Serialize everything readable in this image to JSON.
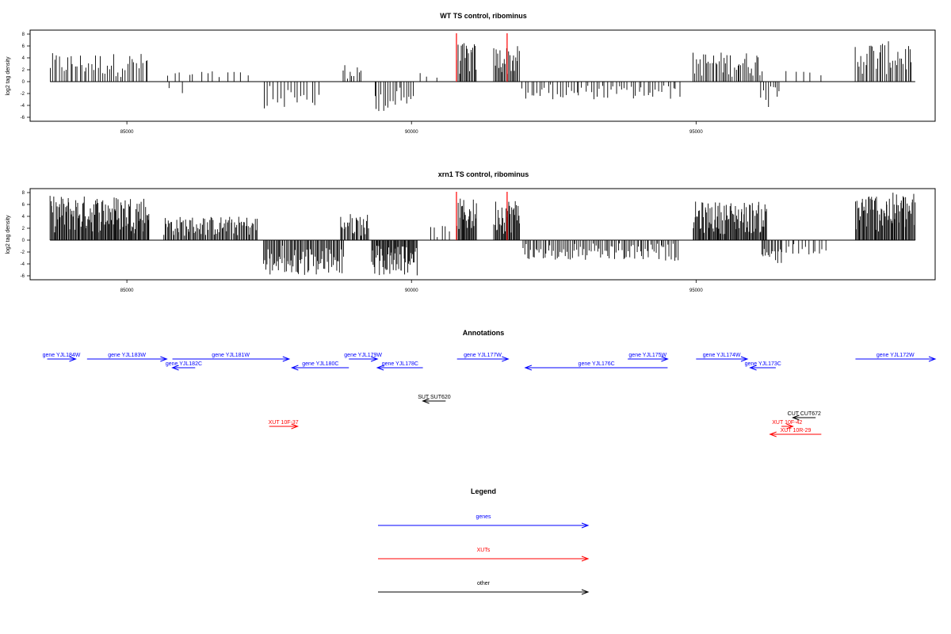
{
  "chart_data": [
    {
      "type": "bar",
      "title": "WT TS control, ribominus",
      "ylabel": "log2 tag density",
      "xlabel": "",
      "xlim": [
        83300,
        99200
      ],
      "ylim": [
        -6,
        8
      ],
      "yticks": [
        "8",
        "6",
        "4",
        "2",
        "0",
        "-2",
        "-4",
        "-6"
      ],
      "xticks": [
        "85000",
        "90000",
        "95000"
      ],
      "xtick_values": [
        85000,
        90000,
        95000
      ],
      "markers": [
        90790,
        91680
      ],
      "marker_color": "#ff0000",
      "regions": [
        {
          "start": 83650,
          "end": 85400,
          "sign": 1,
          "max": 4.8,
          "step": 40
        },
        {
          "start": 85700,
          "end": 87200,
          "sign": 1,
          "max": 1.8,
          "step": 120
        },
        {
          "start": 85800,
          "end": 86000,
          "sign": -1,
          "max": 2.2,
          "step": 150
        },
        {
          "start": 87400,
          "end": 88400,
          "sign": -1,
          "max": 4.5,
          "step": 60
        },
        {
          "start": 88800,
          "end": 89150,
          "sign": 1,
          "max": 3.0,
          "step": 40
        },
        {
          "start": 89350,
          "end": 90050,
          "sign": -1,
          "max": 5.0,
          "step": 40
        },
        {
          "start": 90100,
          "end": 90500,
          "sign": 1,
          "max": 1.5,
          "step": 150
        },
        {
          "start": 90800,
          "end": 91150,
          "sign": 1,
          "max": 6.5,
          "step": 20
        },
        {
          "start": 91450,
          "end": 91900,
          "sign": 1,
          "max": 6.0,
          "step": 20
        },
        {
          "start": 91950,
          "end": 94700,
          "sign": -1,
          "max": 3.0,
          "step": 50
        },
        {
          "start": 94950,
          "end": 96150,
          "sign": 1,
          "max": 5.0,
          "step": 30
        },
        {
          "start": 96150,
          "end": 96500,
          "sign": -1,
          "max": 5.0,
          "step": 40
        },
        {
          "start": 96600,
          "end": 97200,
          "sign": 1,
          "max": 1.8,
          "step": 150
        },
        {
          "start": 97800,
          "end": 98800,
          "sign": 1,
          "max": 6.8,
          "step": 30
        }
      ]
    },
    {
      "type": "bar",
      "title": "xrn1 TS control, ribominus",
      "ylabel": "log2 tag density",
      "xlabel": "",
      "xlim": [
        83300,
        99200
      ],
      "ylim": [
        -6,
        8
      ],
      "yticks": [
        "8",
        "6",
        "4",
        "2",
        "0",
        "-2",
        "-4",
        "-6"
      ],
      "xticks": [
        "85000",
        "90000",
        "95000"
      ],
      "xtick_values": [
        85000,
        90000,
        95000
      ],
      "markers": [
        90790,
        91680
      ],
      "marker_color": "#ff0000",
      "regions": [
        {
          "start": 83650,
          "end": 85400,
          "sign": 1,
          "max": 7.5,
          "step": 15
        },
        {
          "start": 85650,
          "end": 87300,
          "sign": 1,
          "max": 4.0,
          "step": 20
        },
        {
          "start": 87400,
          "end": 88800,
          "sign": -1,
          "max": 6.0,
          "step": 20
        },
        {
          "start": 88750,
          "end": 89250,
          "sign": 1,
          "max": 4.5,
          "step": 20
        },
        {
          "start": 89300,
          "end": 90100,
          "sign": -1,
          "max": 6.0,
          "step": 15
        },
        {
          "start": 90350,
          "end": 90650,
          "sign": 1,
          "max": 2.5,
          "step": 60
        },
        {
          "start": 90800,
          "end": 91150,
          "sign": 1,
          "max": 7.0,
          "step": 15
        },
        {
          "start": 91450,
          "end": 91900,
          "sign": 1,
          "max": 7.0,
          "step": 15
        },
        {
          "start": 91950,
          "end": 94700,
          "sign": -1,
          "max": 3.5,
          "step": 30
        },
        {
          "start": 94950,
          "end": 96250,
          "sign": 1,
          "max": 6.5,
          "step": 15
        },
        {
          "start": 96150,
          "end": 96500,
          "sign": -1,
          "max": 4.0,
          "step": 25
        },
        {
          "start": 96500,
          "end": 97300,
          "sign": -1,
          "max": 2.5,
          "step": 60
        },
        {
          "start": 97800,
          "end": 98850,
          "sign": 1,
          "max": 8.0,
          "step": 15
        }
      ]
    }
  ],
  "annotations": {
    "title": "Annotations",
    "colors": {
      "genes": "#0000ff",
      "XUTs": "#ff0000",
      "other": "#000000"
    },
    "items": [
      {
        "label": "gene YJL184W",
        "type": "genes",
        "start": 83600,
        "end": 84100,
        "dir": "right",
        "row": 0
      },
      {
        "label": "gene YJL183W",
        "type": "genes",
        "start": 84300,
        "end": 85700,
        "dir": "right",
        "row": 0
      },
      {
        "label": "gene YJL182C",
        "type": "genes",
        "start": 85800,
        "end": 86200,
        "dir": "left",
        "row": 1
      },
      {
        "label": "gene YJL181W",
        "type": "genes",
        "start": 85800,
        "end": 87850,
        "dir": "right",
        "row": 0
      },
      {
        "label": "gene YJL180C",
        "type": "genes",
        "start": 87900,
        "end": 88900,
        "dir": "left",
        "row": 1
      },
      {
        "label": "gene YJL179W",
        "type": "genes",
        "start": 88900,
        "end": 89400,
        "dir": "right",
        "row": 0
      },
      {
        "label": "gene YJL178C",
        "type": "genes",
        "start": 89400,
        "end": 90200,
        "dir": "left",
        "row": 1
      },
      {
        "label": "gene YJL177W",
        "type": "genes",
        "start": 90800,
        "end": 91700,
        "dir": "right",
        "row": 0
      },
      {
        "label": "gene YJL176C",
        "type": "genes",
        "start": 92000,
        "end": 94500,
        "dir": "left",
        "row": 1
      },
      {
        "label": "gene YJL175W",
        "type": "genes",
        "start": 93800,
        "end": 94500,
        "dir": "right",
        "row": 0
      },
      {
        "label": "gene YJL174W",
        "type": "genes",
        "start": 95000,
        "end": 95900,
        "dir": "right",
        "row": 0
      },
      {
        "label": "gene YJL173C",
        "type": "genes",
        "start": 95950,
        "end": 96400,
        "dir": "left",
        "row": 1
      },
      {
        "label": "gene YJL172W",
        "type": "genes",
        "start": 97800,
        "end": 99200,
        "dir": "right",
        "row": 0
      },
      {
        "label": "SUT SUT620",
        "type": "other",
        "start": 90200,
        "end": 90600,
        "dir": "left",
        "row": 3
      },
      {
        "label": "XUT 10F-37",
        "type": "XUTs",
        "start": 87500,
        "end": 88000,
        "dir": "right",
        "row": 5
      },
      {
        "label": "CUT CUT672",
        "type": "other",
        "start": 96700,
        "end": 97100,
        "dir": "left",
        "row": 4
      },
      {
        "label": "XUT 10F-42",
        "type": "XUTs",
        "start": 96500,
        "end": 96700,
        "dir": "right",
        "row": 5
      },
      {
        "label": "XUT 10R-29",
        "type": "XUTs",
        "start": 96300,
        "end": 97200,
        "dir": "left",
        "row": 6
      }
    ]
  },
  "legend": {
    "title": "Legend",
    "items": [
      {
        "label": "genes",
        "color": "#0000ff"
      },
      {
        "label": "XUTs",
        "color": "#ff0000"
      },
      {
        "label": "other",
        "color": "#000000"
      }
    ]
  }
}
